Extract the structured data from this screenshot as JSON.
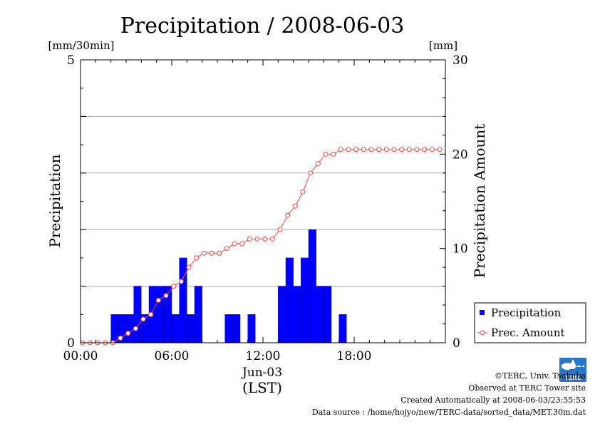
{
  "chart_data": {
    "type": "bar+line",
    "title": "Precipitation / 2008-06-03",
    "ylabel_left": "Precipitation",
    "ylabel_right": "Precipitation Amount",
    "unit_left": "[mm/30min]",
    "unit_right": "[mm]",
    "xlabel_date": "Jun-03",
    "xlabel_tz": "(LST)",
    "xticks": [
      "00:00",
      "06:00",
      "12:00",
      "18:00"
    ],
    "yticks_left": [
      "0",
      "5"
    ],
    "yticks_right": [
      "0",
      "10",
      "20",
      "30"
    ],
    "ylim_left": [
      0,
      5
    ],
    "ylim_right": [
      0,
      30
    ],
    "x_range_hours": [
      0,
      24
    ],
    "grid": "horizontal",
    "legend_position": "bottom-right",
    "colors": {
      "bars": "#0000ff",
      "line": "#ff4040",
      "grid": "#aaaaaa"
    },
    "series": [
      {
        "name": "Precipitation",
        "type": "bar",
        "axis": "left",
        "x_hours": [
          0,
          0.5,
          1,
          1.5,
          2,
          2.5,
          3,
          3.5,
          4,
          4.5,
          5,
          5.5,
          6,
          6.5,
          7,
          7.5,
          8,
          8.5,
          9,
          9.5,
          10,
          10.5,
          11,
          11.5,
          12,
          12.5,
          13,
          13.5,
          14,
          14.5,
          15,
          15.5,
          16,
          16.5,
          17,
          17.5,
          18,
          18.5,
          19,
          19.5,
          20,
          20.5,
          21,
          21.5,
          22,
          22.5,
          23,
          23.5
        ],
        "values": [
          0,
          0,
          0,
          0,
          0.5,
          0.5,
          0.5,
          1.0,
          0.5,
          1.0,
          1.0,
          1.0,
          0.5,
          1.5,
          0.5,
          1.0,
          0,
          0,
          0,
          0.5,
          0.5,
          0,
          0.5,
          0,
          0,
          0,
          1.0,
          1.5,
          1.0,
          1.5,
          2.0,
          1.0,
          1.0,
          0,
          0.5,
          0,
          0,
          0,
          0,
          0,
          0,
          0,
          0,
          0,
          0,
          0,
          0,
          0
        ]
      },
      {
        "name": "Prec. Amount",
        "type": "line",
        "axis": "right",
        "x_hours": [
          0,
          0.5,
          1,
          1.5,
          2,
          2.5,
          3,
          3.5,
          4,
          4.5,
          5,
          5.5,
          6,
          6.5,
          7,
          7.5,
          8,
          8.5,
          9,
          9.5,
          10,
          10.5,
          11,
          11.5,
          12,
          12.5,
          13,
          13.5,
          14,
          14.5,
          15,
          15.5,
          16,
          16.5,
          17,
          17.5,
          18,
          18.5,
          19,
          19.5,
          20,
          20.5,
          21,
          21.5,
          22,
          22.5,
          23,
          23.5
        ],
        "values": [
          0,
          0,
          0,
          0,
          0,
          0.5,
          1.0,
          1.5,
          2.5,
          3.0,
          4.5,
          5.0,
          6.0,
          6.5,
          8.0,
          9.0,
          9.5,
          9.5,
          9.5,
          10.0,
          10.5,
          10.5,
          11.0,
          11.0,
          11.0,
          11.0,
          12.0,
          13.5,
          14.5,
          16.0,
          18.0,
          19.0,
          20.0,
          20.0,
          20.5,
          20.5,
          20.5,
          20.5,
          20.5,
          20.5,
          20.5,
          20.5,
          20.5,
          20.5,
          20.5,
          20.5,
          20.5,
          20.5
        ]
      }
    ],
    "legend": [
      {
        "label": "Precipitation",
        "marker": "square"
      },
      {
        "label": "Prec. Amount",
        "marker": "circle-line"
      }
    ]
  },
  "logo_text": "TERC",
  "footer": {
    "copyright": "©TERC, Univ. Tsukuba",
    "observed": "Observed at TERC Tower site",
    "created": "Created Automatically at 2008-06-03/23:55:53",
    "source": "Data source : /home/hojyo/new/TERC-data/sorted_data/MET.30m.dat"
  }
}
